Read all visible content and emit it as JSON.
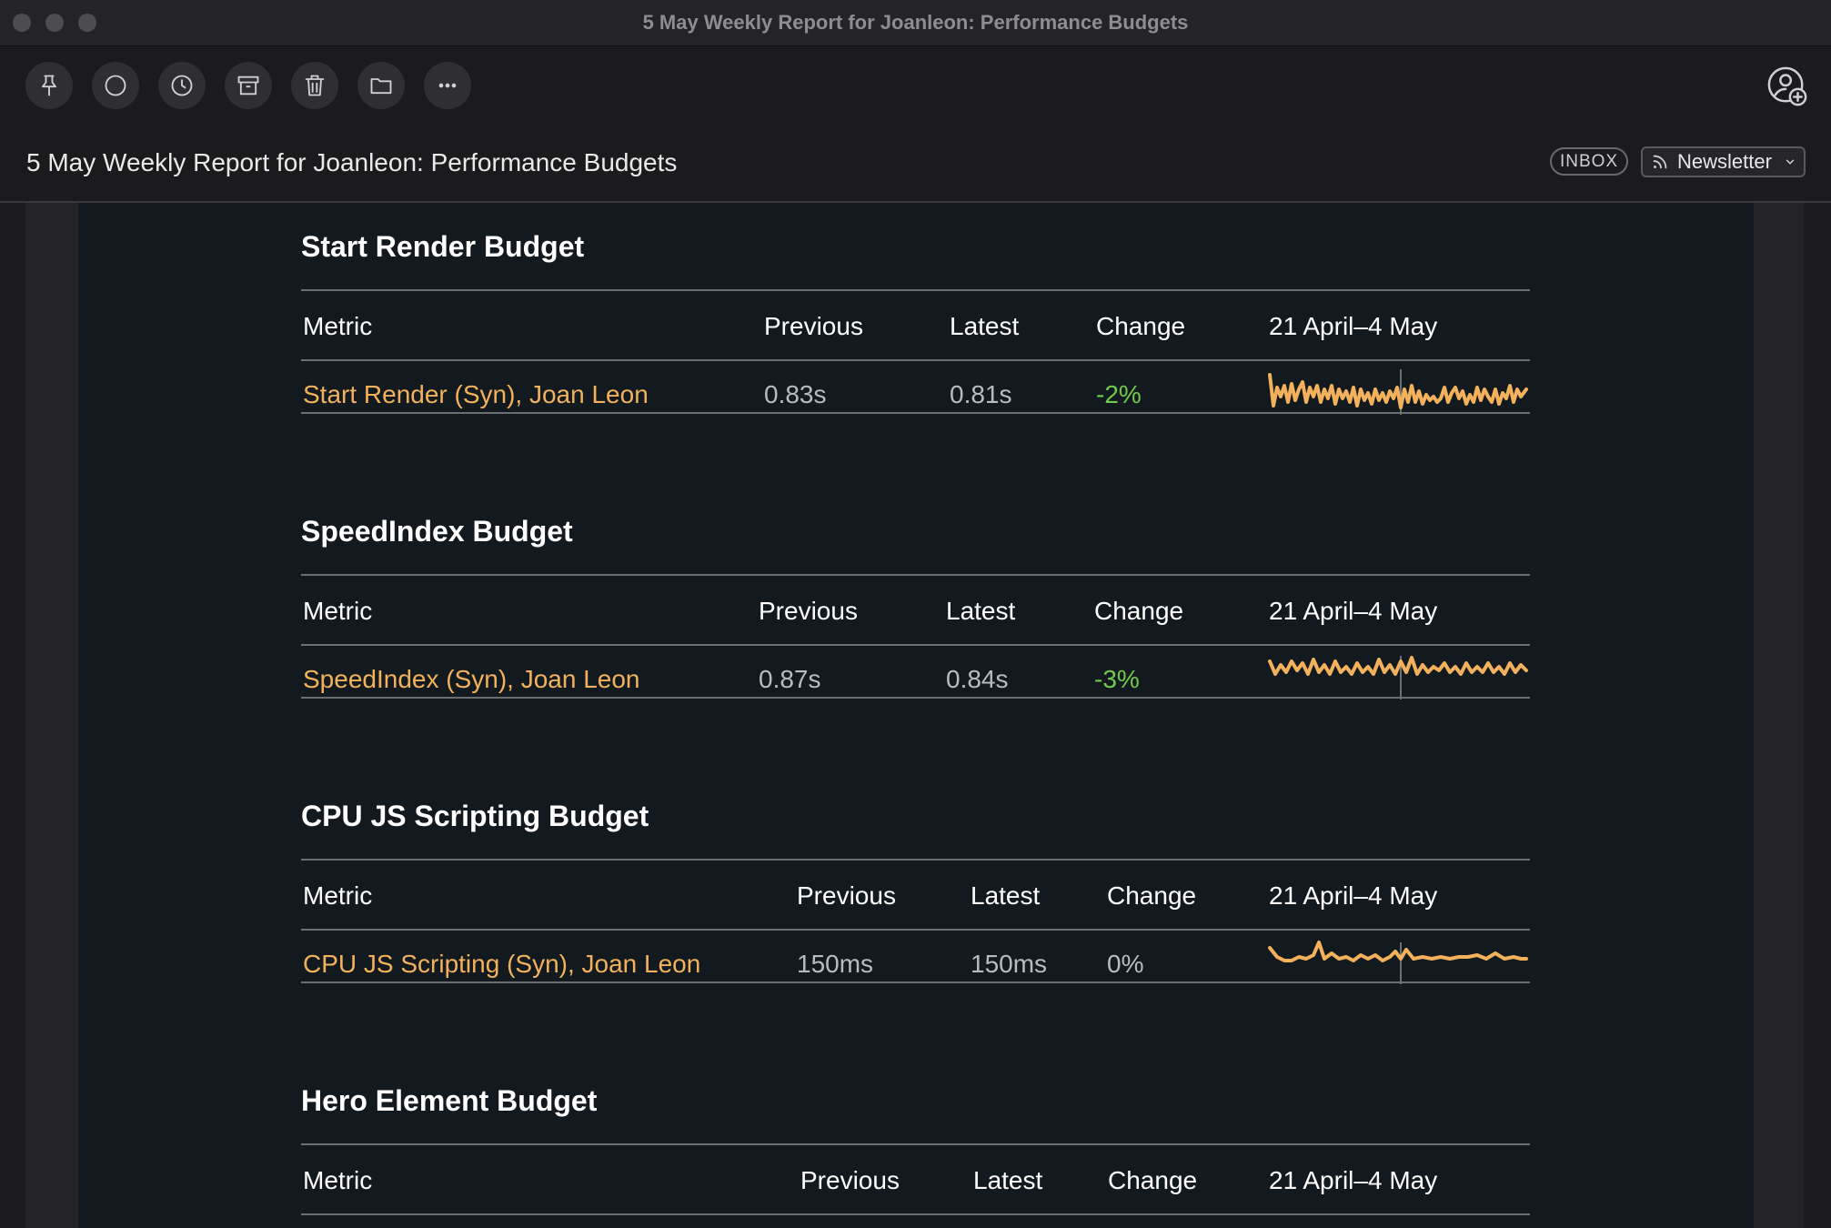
{
  "window": {
    "title": "5 May Weekly Report for Joanleon: Performance Budgets"
  },
  "toolbar": {
    "buttons": [
      "pin-icon",
      "circle-icon",
      "clock-icon",
      "archive-icon",
      "trash-icon",
      "folder-icon",
      "more-icon"
    ],
    "account_icon": "add-account-icon"
  },
  "message": {
    "subject": "5 May Weekly Report for Joanleon: Performance Budgets",
    "inbox_label": "INBOX",
    "category_label": "Newsletter"
  },
  "colors": {
    "accent": "#f3b15b",
    "positive_change": "#6fcb4b",
    "background": "#131a1f"
  },
  "sections": [
    {
      "title": "Start Render Budget",
      "headers": {
        "metric": "Metric",
        "previous": "Previous",
        "latest": "Latest",
        "change": "Change",
        "range": "21 April–4 May"
      },
      "row": {
        "metric": "Start Render (Syn), Joan Leon",
        "previous": "0.83s",
        "latest": "0.81s",
        "change": "-2%"
      }
    },
    {
      "title": "SpeedIndex Budget",
      "headers": {
        "metric": "Metric",
        "previous": "Previous",
        "latest": "Latest",
        "change": "Change",
        "range": "21 April–4 May"
      },
      "row": {
        "metric": "SpeedIndex (Syn), Joan Leon",
        "previous": "0.87s",
        "latest": "0.84s",
        "change": "-3%"
      }
    },
    {
      "title": "CPU JS Scripting Budget",
      "headers": {
        "metric": "Metric",
        "previous": "Previous",
        "latest": "Latest",
        "change": "Change",
        "range": "21 April–4 May"
      },
      "row": {
        "metric": "CPU JS Scripting (Syn), Joan Leon",
        "previous": "150ms",
        "latest": "150ms",
        "change": "0%"
      }
    },
    {
      "title": "Hero Element Budget",
      "headers": {
        "metric": "Metric",
        "previous": "Previous",
        "latest": "Latest",
        "change": "Change",
        "range": "21 April–4 May"
      }
    }
  ]
}
